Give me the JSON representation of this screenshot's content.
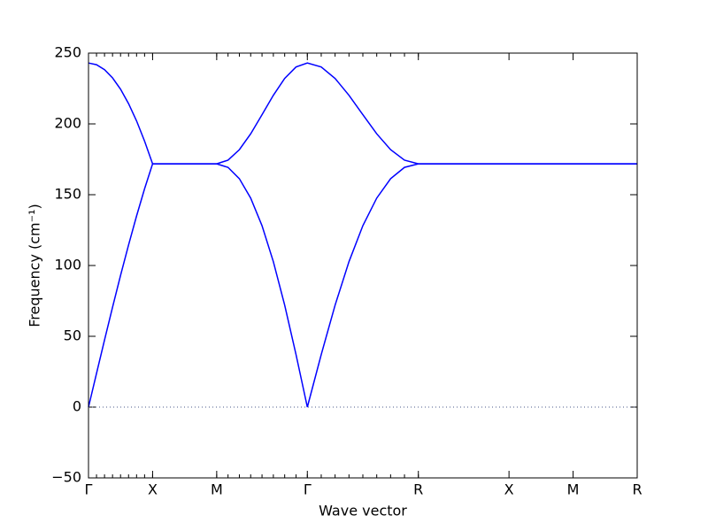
{
  "chart_data": {
    "type": "line",
    "xlabel": "Wave vector",
    "ylabel": "Frequency (cm⁻¹)",
    "x": [
      0,
      0.0625,
      0.125,
      0.1875,
      0.25,
      0.3125,
      0.375,
      0.4375,
      0.5,
      1.0,
      1.0884,
      1.1768,
      1.2651,
      1.3535,
      1.4419,
      1.5303,
      1.6187,
      1.707,
      1.8153,
      1.9235,
      2.0318,
      2.14,
      2.2483,
      2.3565,
      2.4648,
      2.573,
      4.28
    ],
    "series": [
      {
        "color": "#0000ff",
        "values": [
          0,
          23.8,
          47.4,
          70.5,
          93.0,
          114.5,
          135.0,
          154.2,
          171.8,
          171.8,
          169.3,
          161.3,
          147.6,
          128.1,
          102.7,
          72.0,
          37.1,
          0,
          37.1,
          72.0,
          102.7,
          128.1,
          147.6,
          161.3,
          169.3,
          171.8,
          171.8
        ]
      },
      {
        "color": "#0000ff",
        "values": [
          243,
          241.8,
          238.3,
          232.5,
          224.5,
          214.3,
          202.1,
          187.8,
          171.8,
          171.8,
          174.4,
          181.8,
          193.0,
          206.5,
          220.2,
          232.1,
          240.2,
          243,
          240.2,
          232.1,
          220.2,
          206.5,
          193.0,
          181.8,
          174.4,
          171.8,
          171.8
        ]
      }
    ],
    "xlim": [
      0,
      4.28
    ],
    "xticks": [
      {
        "value": 0,
        "label": "Γ"
      },
      {
        "value": 0.5,
        "label": "X"
      },
      {
        "value": 1.0,
        "label": "M"
      },
      {
        "value": 1.707,
        "label": "Γ"
      },
      {
        "value": 2.573,
        "label": "R"
      },
      {
        "value": 3.28,
        "label": "X"
      },
      {
        "value": 3.78,
        "label": "M"
      },
      {
        "value": 4.28,
        "label": "R"
      }
    ],
    "ylim": [
      -50,
      250
    ],
    "yticks": [
      {
        "value": -50,
        "label": "−50"
      },
      0,
      50,
      100,
      150,
      200,
      250
    ],
    "zero_line": true
  }
}
